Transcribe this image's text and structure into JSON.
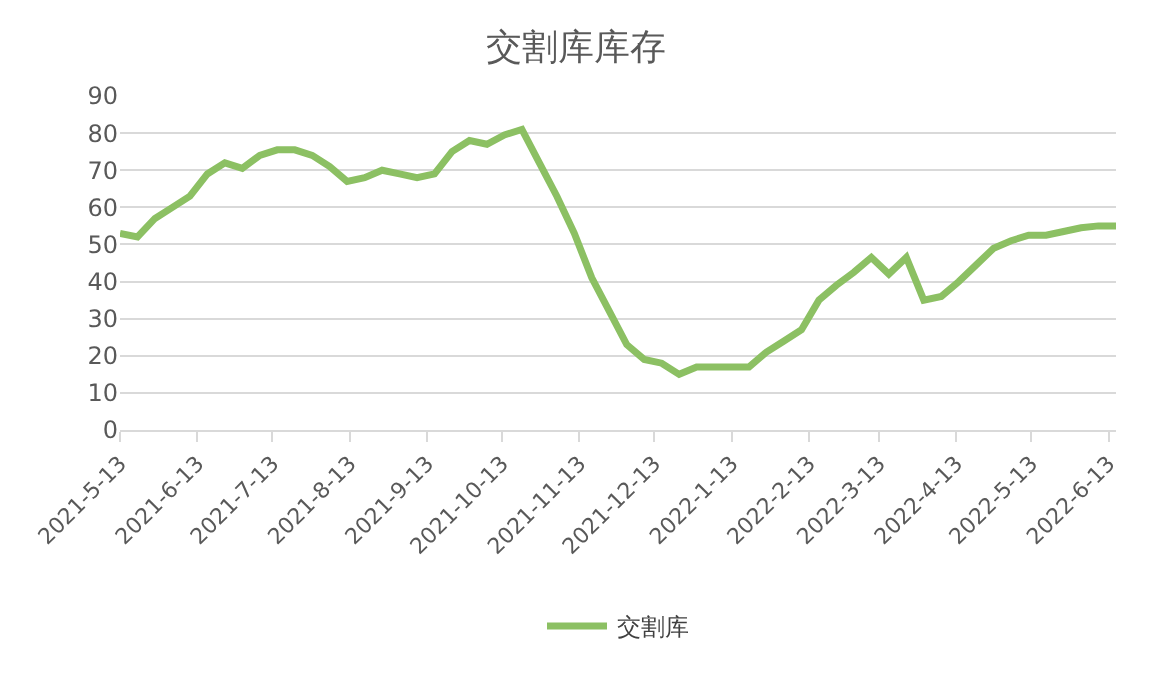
{
  "chart_data": {
    "type": "line",
    "title": "交割库库存",
    "x": [
      "2021-05-13",
      "2021-05-20",
      "2021-05-27",
      "2021-06-03",
      "2021-06-10",
      "2021-06-17",
      "2021-06-24",
      "2021-07-01",
      "2021-07-08",
      "2021-07-15",
      "2021-07-22",
      "2021-07-29",
      "2021-08-05",
      "2021-08-12",
      "2021-08-19",
      "2021-08-26",
      "2021-09-02",
      "2021-09-09",
      "2021-09-16",
      "2021-09-23",
      "2021-09-30",
      "2021-10-07",
      "2021-10-14",
      "2021-10-21",
      "2021-10-28",
      "2021-11-04",
      "2021-11-11",
      "2021-11-18",
      "2021-11-25",
      "2021-12-02",
      "2021-12-09",
      "2021-12-16",
      "2021-12-23",
      "2021-12-30",
      "2022-01-06",
      "2022-01-13",
      "2022-01-20",
      "2022-01-27",
      "2022-02-03",
      "2022-02-10",
      "2022-02-17",
      "2022-02-24",
      "2022-03-03",
      "2022-03-10",
      "2022-03-17",
      "2022-03-24",
      "2022-03-31",
      "2022-04-07",
      "2022-04-14",
      "2022-04-21",
      "2022-04-28",
      "2022-05-05",
      "2022-05-12",
      "2022-05-19",
      "2022-05-26",
      "2022-06-02",
      "2022-06-09",
      "2022-06-16"
    ],
    "series": [
      {
        "name": "交割库",
        "color": "#8cc063",
        "values": [
          53,
          52,
          57,
          60,
          63,
          69,
          72,
          70.5,
          74,
          75.5,
          75.5,
          74,
          71,
          67,
          68,
          70,
          69,
          68,
          69,
          75,
          78,
          77,
          79.5,
          81,
          72,
          63,
          53,
          41,
          32,
          23,
          19,
          18,
          15,
          17,
          17,
          17,
          17,
          21,
          24,
          27,
          35,
          39,
          42.5,
          46.5,
          42,
          46.5,
          35,
          36,
          40,
          44.5,
          49,
          51,
          52.5,
          52.5,
          53.5,
          54.5,
          55,
          55
        ]
      }
    ],
    "xlim": [
      "2021-05-13",
      "2022-06-16"
    ],
    "xticks": [
      {
        "value": "2021-05-13",
        "label": "2021-5-13"
      },
      {
        "value": "2021-06-13",
        "label": "2021-6-13"
      },
      {
        "value": "2021-07-13",
        "label": "2021-7-13"
      },
      {
        "value": "2021-08-13",
        "label": "2021-8-13"
      },
      {
        "value": "2021-09-13",
        "label": "2021-9-13"
      },
      {
        "value": "2021-10-13",
        "label": "2021-10-13"
      },
      {
        "value": "2021-11-13",
        "label": "2021-11-13"
      },
      {
        "value": "2021-12-13",
        "label": "2021-12-13"
      },
      {
        "value": "2022-01-13",
        "label": "2022-1-13"
      },
      {
        "value": "2022-02-13",
        "label": "2022-2-13"
      },
      {
        "value": "2022-03-13",
        "label": "2022-3-13"
      },
      {
        "value": "2022-04-13",
        "label": "2022-4-13"
      },
      {
        "value": "2022-05-13",
        "label": "2022-5-13"
      },
      {
        "value": "2022-06-13",
        "label": "2022-6-13"
      }
    ],
    "ylim": [
      0,
      90
    ],
    "yticks": [
      0,
      10,
      20,
      30,
      40,
      50,
      60,
      70,
      80,
      90
    ],
    "grid": "y",
    "legend": "bottom",
    "marker": "none",
    "line_style": "solid"
  }
}
